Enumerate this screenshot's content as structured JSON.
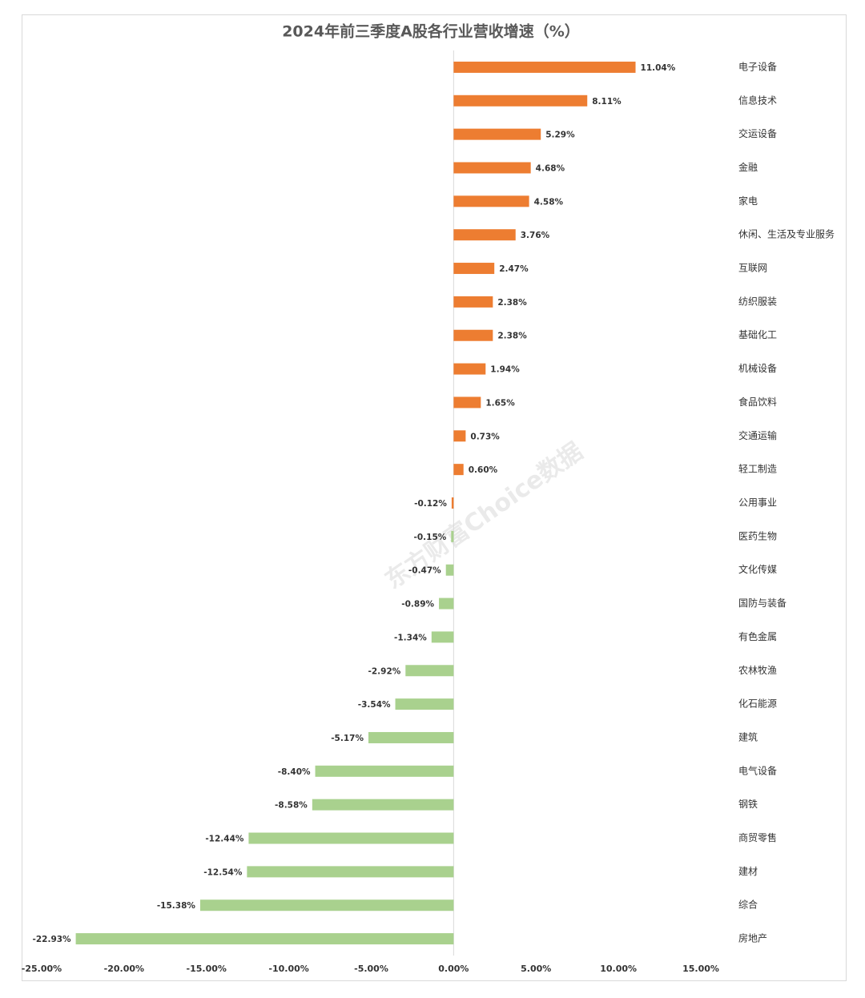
{
  "chart_data": {
    "type": "hbar",
    "title": "2024年前三季度A股各行业营收增速（%）",
    "watermark": "东方财富Choice数据",
    "categories": [
      "电子设备",
      "信息技术",
      "交运设备",
      "金融",
      "家电",
      "休闲、生活及专业服务",
      "互联网",
      "纺织服装",
      "基础化工",
      "机械设备",
      "食品饮料",
      "交通运输",
      "轻工制造",
      "公用事业",
      "医药生物",
      "文化传媒",
      "国防与装备",
      "有色金属",
      "农林牧渔",
      "化石能源",
      "建筑",
      "电气设备",
      "钢铁",
      "商贸零售",
      "建材",
      "综合",
      "房地产"
    ],
    "values": [
      11.04,
      8.11,
      5.29,
      4.68,
      4.58,
      3.76,
      2.47,
      2.38,
      2.38,
      1.94,
      1.65,
      0.73,
      0.6,
      -0.12,
      -0.15,
      -0.47,
      -0.89,
      -1.34,
      -2.92,
      -3.54,
      -5.17,
      -8.4,
      -8.58,
      -12.44,
      -12.54,
      -15.38,
      -22.93
    ],
    "value_labels": [
      "11.04%",
      "8.11%",
      "5.29%",
      "4.68%",
      "4.58%",
      "3.76%",
      "2.47%",
      "2.38%",
      "2.38%",
      "1.94%",
      "1.65%",
      "0.73%",
      "0.60%",
      "-0.12%",
      "-0.15%",
      "-0.47%",
      "-0.89%",
      "-1.34%",
      "-2.92%",
      "-3.54%",
      "-5.17%",
      "-8.40%",
      "-8.58%",
      "-12.44%",
      "-12.54%",
      "-15.38%",
      "-22.93%"
    ],
    "colors": [
      "#ed7d31",
      "#ed7d31",
      "#ed7d31",
      "#ed7d31",
      "#ed7d31",
      "#ed7d31",
      "#ed7d31",
      "#ed7d31",
      "#ed7d31",
      "#ed7d31",
      "#ed7d31",
      "#ed7d31",
      "#ed7d31",
      "#ed7d31",
      "#a9d18e",
      "#a9d18e",
      "#a9d18e",
      "#a9d18e",
      "#a9d18e",
      "#a9d18e",
      "#a9d18e",
      "#a9d18e",
      "#a9d18e",
      "#a9d18e",
      "#a9d18e",
      "#a9d18e",
      "#a9d18e"
    ],
    "xlim": [
      -25,
      15
    ],
    "xticks": [
      {
        "value": -25,
        "label": "-25.00%"
      },
      {
        "value": -20,
        "label": "-20.00%"
      },
      {
        "value": -15,
        "label": "-15.00%"
      },
      {
        "value": -10,
        "label": "-10.00%"
      },
      {
        "value": -5,
        "label": "-5.00%"
      },
      {
        "value": 0,
        "label": "0.00%"
      },
      {
        "value": 5,
        "label": "5.00%"
      },
      {
        "value": 10,
        "label": "10.00%"
      },
      {
        "value": 15,
        "label": "15.00%"
      }
    ],
    "grid": false
  }
}
